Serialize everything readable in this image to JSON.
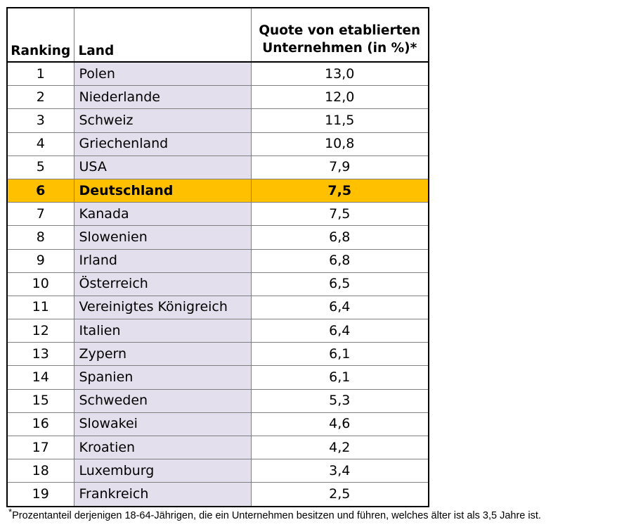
{
  "chart_data": {
    "type": "table",
    "columns": [
      "Ranking",
      "Land",
      "Quote von etablierten Unternehmen (in %)*"
    ],
    "header": {
      "rank": "Ranking",
      "land": "Land",
      "quote_line1": "Quote von etablierten",
      "quote_line2": "Unternehmen (in %)*"
    },
    "highlight_row": "6",
    "highlight_color": "#ffc000",
    "land_column_color": "#e3dfec",
    "rows": [
      {
        "rank": "1",
        "land": "Polen",
        "quote": "13,0"
      },
      {
        "rank": "2",
        "land": "Niederlande",
        "quote": "12,0"
      },
      {
        "rank": "3",
        "land": "Schweiz",
        "quote": "11,5"
      },
      {
        "rank": "4",
        "land": "Griechenland",
        "quote": "10,8"
      },
      {
        "rank": "5",
        "land": "USA",
        "quote": "7,9"
      },
      {
        "rank": "6",
        "land": "Deutschland",
        "quote": "7,5"
      },
      {
        "rank": "7",
        "land": "Kanada",
        "quote": "7,5"
      },
      {
        "rank": "8",
        "land": "Slowenien",
        "quote": "6,8"
      },
      {
        "rank": "9",
        "land": "Irland",
        "quote": "6,8"
      },
      {
        "rank": "10",
        "land": "Österreich",
        "quote": "6,5"
      },
      {
        "rank": "11",
        "land": "Vereinigtes Königreich",
        "quote": "6,4"
      },
      {
        "rank": "12",
        "land": "Italien",
        "quote": "6,4"
      },
      {
        "rank": "13",
        "land": "Zypern",
        "quote": "6,1"
      },
      {
        "rank": "14",
        "land": "Spanien",
        "quote": "6,1"
      },
      {
        "rank": "15",
        "land": "Schweden",
        "quote": "5,3"
      },
      {
        "rank": "16",
        "land": "Slowakei",
        "quote": "4,6"
      },
      {
        "rank": "17",
        "land": "Kroatien",
        "quote": "4,2"
      },
      {
        "rank": "18",
        "land": "Luxemburg",
        "quote": "3,4"
      },
      {
        "rank": "19",
        "land": "Frankreich",
        "quote": "2,5"
      }
    ],
    "footnote": {
      "marker": "*",
      "text": "Prozentanteil derjenigen 18-64-Jährigen, die ein Unternehmen besitzen und führen, welches älter ist als 3,5 Jahre ist."
    }
  }
}
